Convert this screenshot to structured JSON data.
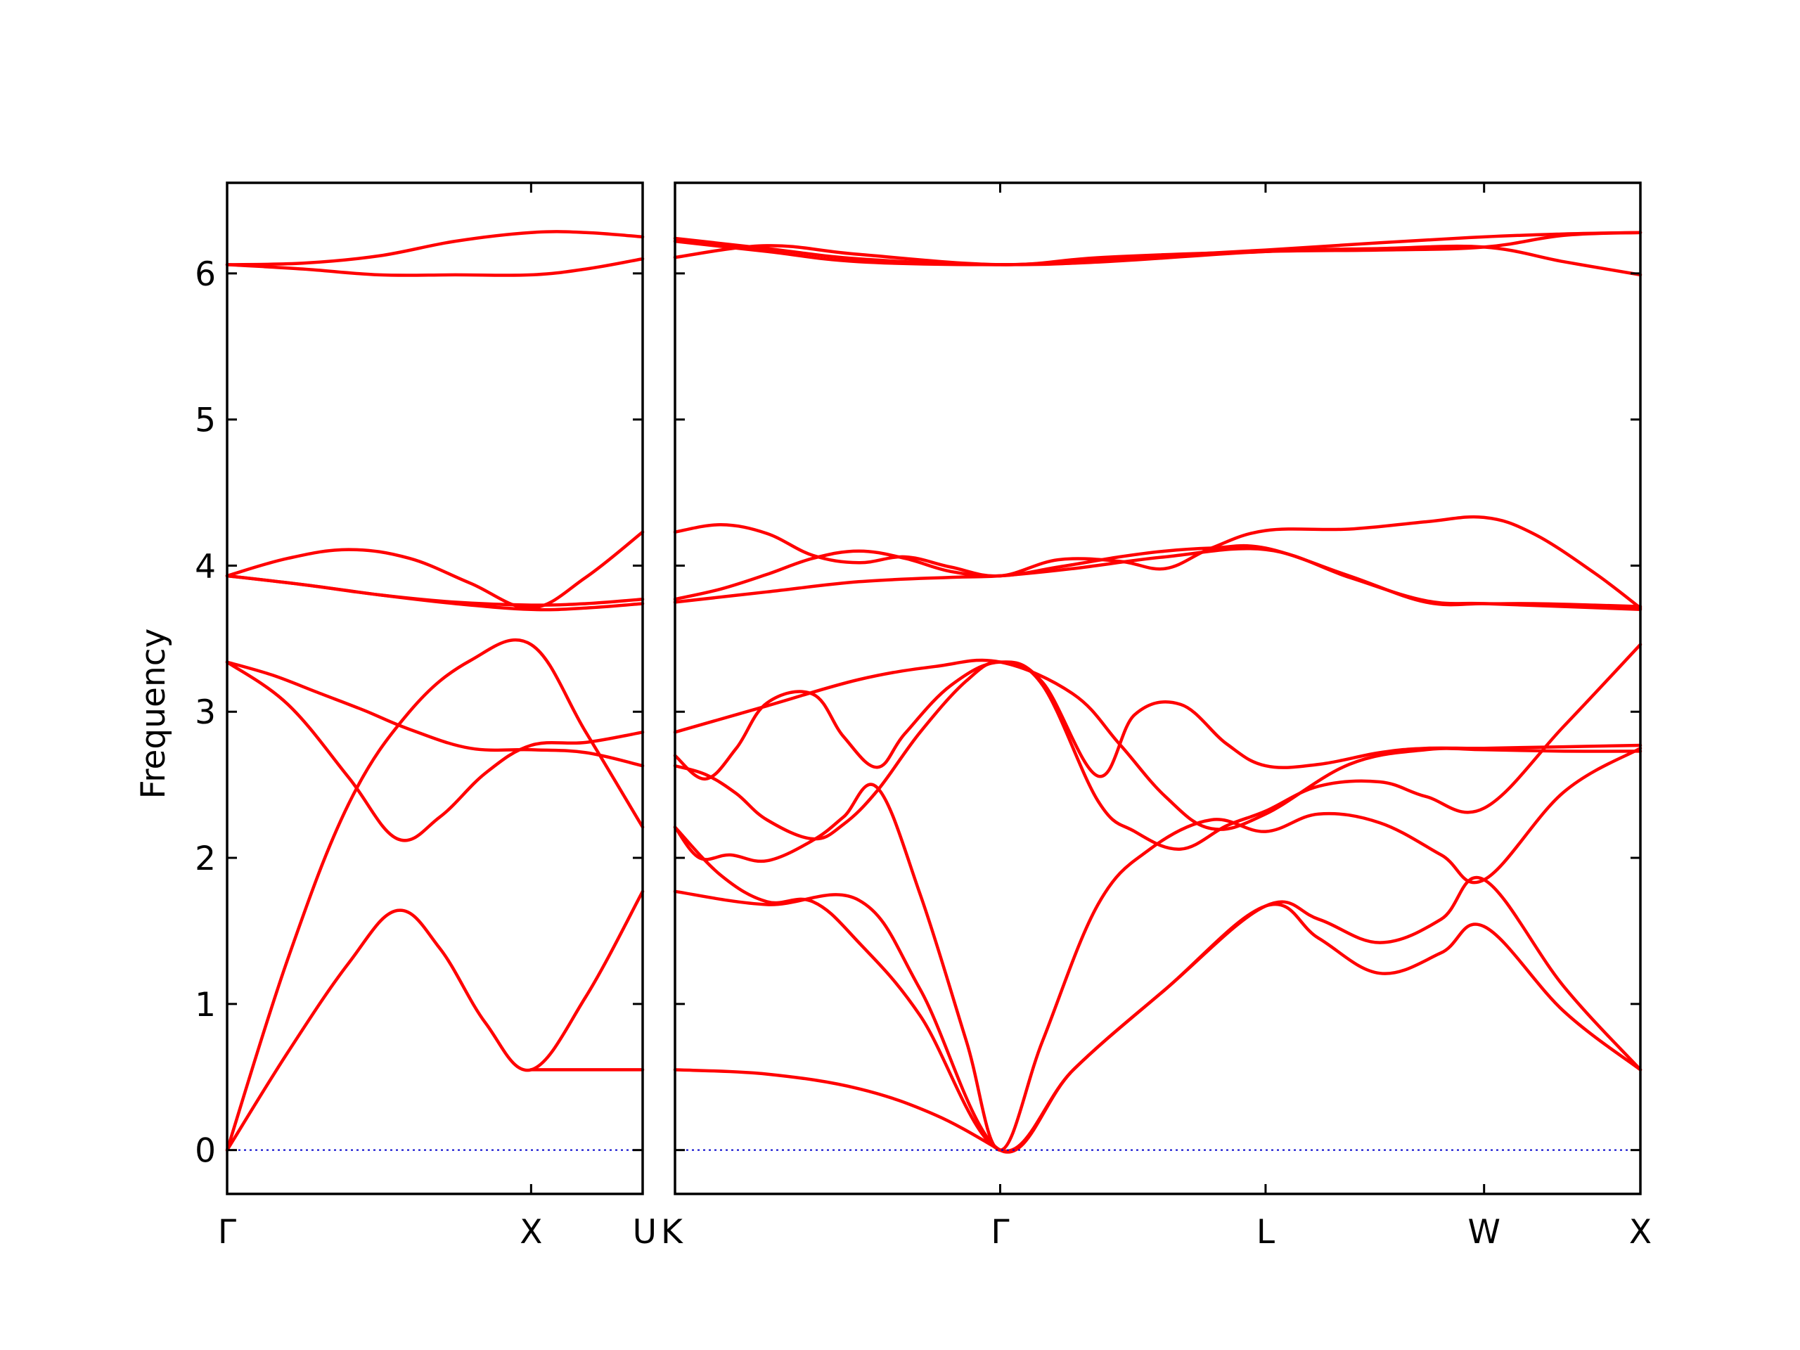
{
  "chart_data": {
    "type": "line",
    "title": "",
    "ylabel": "Frequency",
    "ylim": [
      -0.3,
      6.62
    ],
    "yticks": [
      0,
      1,
      2,
      3,
      4,
      5,
      6
    ],
    "grid": false,
    "colors": {
      "band": "#ff0000",
      "zero_line": "#0000cc",
      "axes": "#000000"
    },
    "panels": [
      {
        "name": "Gamma-X-U",
        "xlim": [
          0,
          1.367
        ],
        "xticks": [
          {
            "x": 0,
            "label": "Γ"
          },
          {
            "x": 1.0,
            "label": "X"
          },
          {
            "x": 1.367,
            "label": "U"
          }
        ],
        "series": [
          {
            "x": [
              0,
              0.25,
              0.5,
              0.75,
              1.0,
              1.18,
              1.367
            ],
            "y": [
              6.06,
              6.07,
              6.12,
              6.22,
              6.28,
              6.28,
              6.25
            ]
          },
          {
            "x": [
              0,
              0.25,
              0.5,
              0.75,
              1.0,
              1.18,
              1.367
            ],
            "y": [
              6.06,
              6.03,
              5.99,
              5.99,
              5.99,
              6.03,
              6.1
            ]
          },
          {
            "x": [
              0,
              0.2,
              0.4,
              0.6,
              0.8,
              1.0,
              1.18,
              1.367
            ],
            "y": [
              3.93,
              4.05,
              4.11,
              4.05,
              3.88,
              3.71,
              3.92,
              4.23
            ]
          },
          {
            "x": [
              0,
              0.25,
              0.5,
              0.75,
              1.0,
              1.18,
              1.367
            ],
            "y": [
              3.93,
              3.87,
              3.8,
              3.75,
              3.73,
              3.74,
              3.77
            ]
          },
          {
            "x": [
              0,
              0.25,
              0.5,
              0.75,
              1.0,
              1.18,
              1.367
            ],
            "y": [
              3.93,
              3.87,
              3.8,
              3.74,
              3.7,
              3.71,
              3.74
            ]
          },
          {
            "x": [
              0,
              0.15,
              0.3,
              0.45,
              0.6,
              0.8,
              1.0,
              1.18,
              1.367
            ],
            "y": [
              3.34,
              3.25,
              3.13,
              3.01,
              2.88,
              2.75,
              2.74,
              2.72,
              2.63
            ]
          },
          {
            "x": [
              0,
              0.2,
              0.4,
              0.56,
              0.7,
              0.85,
              1.0,
              1.18,
              1.367
            ],
            "y": [
              3.34,
              3.05,
              2.55,
              2.13,
              2.28,
              2.58,
              2.77,
              2.79,
              2.86
            ]
          },
          {
            "x": [
              0,
              0.2,
              0.4,
              0.6,
              0.8,
              1.0,
              1.18,
              1.367
            ],
            "y": [
              0.0,
              1.31,
              2.37,
              3.0,
              3.35,
              3.46,
              2.86,
              2.21
            ]
          },
          {
            "x": [
              0,
              0.2,
              0.4,
              0.56,
              0.7,
              0.85,
              1.0,
              1.18,
              1.367
            ],
            "y": [
              0.0,
              0.67,
              1.28,
              1.64,
              1.38,
              0.87,
              0.55,
              1.05,
              1.77
            ]
          },
          {
            "x": [
              1.0,
              1.18,
              1.367
            ],
            "y": [
              0.55,
              0.55,
              0.55
            ]
          },
          {
            "x": [
              0,
              1.367
            ],
            "y": [
              0,
              0
            ],
            "style": "zero"
          }
        ]
      },
      {
        "name": "K-Gamma-L-W-X",
        "xlim": [
          0,
          3.15
        ],
        "xticks": [
          {
            "x": 0,
            "label": "K"
          },
          {
            "x": 1.061,
            "label": "Γ"
          },
          {
            "x": 1.927,
            "label": "L"
          },
          {
            "x": 2.64,
            "label": "W"
          },
          {
            "x": 3.15,
            "label": "X"
          }
        ],
        "series": [
          {
            "x": [
              0,
              0.3,
              0.6,
              1.061,
              1.4,
              1.927,
              2.3,
              2.64,
              2.9,
              3.15
            ],
            "y": [
              6.24,
              6.17,
              6.1,
              6.06,
              6.1,
              6.16,
              6.21,
              6.25,
              6.27,
              6.28
            ]
          },
          {
            "x": [
              0,
              0.3,
              0.6,
              1.061,
              1.4,
              1.927,
              2.3,
              2.64,
              2.9,
              3.15
            ],
            "y": [
              6.22,
              6.15,
              6.08,
              6.06,
              6.08,
              6.15,
              6.17,
              6.18,
              6.08,
              5.99
            ]
          },
          {
            "x": [
              0,
              0.3,
              0.6,
              1.061,
              1.4,
              1.927,
              2.3,
              2.64,
              2.9,
              3.15
            ],
            "y": [
              6.11,
              6.19,
              6.13,
              6.06,
              6.11,
              6.15,
              6.16,
              6.18,
              6.26,
              6.28
            ]
          },
          {
            "x": [
              0,
              0.15,
              0.3,
              0.45,
              0.6,
              0.75,
              0.9,
              1.061,
              1.25,
              1.45,
              1.6,
              1.75,
              1.927,
              2.2,
              2.45,
              2.64,
              2.8,
              3.0,
              3.15
            ],
            "y": [
              4.23,
              4.28,
              4.22,
              4.07,
              4.02,
              4.06,
              3.99,
              3.93,
              4.04,
              4.03,
              3.98,
              4.12,
              4.24,
              4.25,
              4.3,
              4.33,
              4.22,
              3.95,
              3.71
            ]
          },
          {
            "x": [
              0,
              0.15,
              0.3,
              0.45,
              0.6,
              0.75,
              0.9,
              1.061,
              1.25,
              1.45,
              1.6,
              1.75,
              1.927,
              2.2,
              2.45,
              2.64,
              2.8,
              3.0,
              3.15
            ],
            "y": [
              3.77,
              3.84,
              3.94,
              4.05,
              4.1,
              4.05,
              3.96,
              3.93,
              3.99,
              4.06,
              4.1,
              4.12,
              4.12,
              3.93,
              3.75,
              3.74,
              3.74,
              3.73,
              3.72
            ]
          },
          {
            "x": [
              0,
              0.3,
              0.6,
              0.9,
              1.061,
              1.3,
              1.6,
              1.927,
              2.2,
              2.45,
              2.64,
              2.9,
              3.15
            ],
            "y": [
              3.75,
              3.82,
              3.89,
              3.92,
              3.93,
              3.98,
              4.06,
              4.11,
              3.92,
              3.76,
              3.74,
              3.72,
              3.7
            ]
          },
          {
            "x": [
              0,
              0.3,
              0.6,
              0.85,
              1.061,
              1.3,
              1.45,
              1.6,
              1.75,
              1.927,
              2.2,
              2.45,
              2.64,
              2.9,
              3.15
            ],
            "y": [
              2.86,
              3.04,
              3.22,
              3.31,
              3.34,
              3.12,
              2.78,
              2.42,
              2.2,
              2.3,
              2.64,
              2.74,
              2.74,
              2.73,
              2.73
            ]
          },
          {
            "x": [
              0,
              0.1,
              0.2,
              0.3,
              0.45,
              0.55,
              0.66,
              0.75,
              0.9,
              1.061,
              1.2,
              1.38,
              1.5,
              1.65,
              1.8,
              1.927,
              2.1,
              2.3,
              2.45,
              2.64,
              2.9,
              3.15
            ],
            "y": [
              2.7,
              2.54,
              2.75,
              3.06,
              3.12,
              2.83,
              2.62,
              2.85,
              3.18,
              3.34,
              3.2,
              2.56,
              2.98,
              3.05,
              2.78,
              2.63,
              2.64,
              2.72,
              2.75,
              2.75,
              2.76,
              2.77
            ]
          },
          {
            "x": [
              0,
              0.1,
              0.2,
              0.3,
              0.45,
              0.55,
              0.66,
              0.8,
              0.95,
              1.061,
              1.2,
              1.38,
              1.5,
              1.65,
              1.8,
              1.927,
              2.1,
              2.3,
              2.45,
              2.64,
              2.9,
              3.15
            ],
            "y": [
              2.63,
              2.57,
              2.44,
              2.26,
              2.13,
              2.23,
              2.46,
              2.86,
              3.21,
              3.34,
              3.18,
              2.39,
              2.18,
              2.06,
              2.22,
              2.32,
              2.49,
              2.52,
              2.42,
              2.34,
              2.9,
              3.46
            ]
          },
          {
            "x": [
              0,
              0.08,
              0.18,
              0.3,
              0.45,
              0.55,
              0.66,
              0.8,
              0.95,
              1.061,
              1.2,
              1.38,
              1.55,
              1.75,
              1.927,
              2.1,
              2.3,
              2.5,
              2.64,
              2.9,
              3.15
            ],
            "y": [
              2.21,
              2.0,
              2.02,
              1.98,
              2.12,
              2.28,
              2.48,
              1.75,
              0.75,
              0.0,
              0.75,
              1.68,
              2.06,
              2.26,
              2.18,
              2.3,
              2.24,
              2.02,
              1.85,
              2.45,
              2.75
            ]
          },
          {
            "x": [
              0,
              0.15,
              0.3,
              0.45,
              0.6,
              0.8,
              1.061,
              1.3,
              1.6,
              1.927,
              2.1,
              2.3,
              2.5,
              2.64,
              2.9,
              3.15
            ],
            "y": [
              2.21,
              1.88,
              1.7,
              1.7,
              1.42,
              0.92,
              0.0,
              0.55,
              1.1,
              1.67,
              1.58,
              1.42,
              1.58,
              1.85,
              1.12,
              0.55
            ]
          },
          {
            "x": [
              0,
              0.3,
              0.6,
              0.8,
              1.061,
              1.3,
              1.6,
              1.927,
              2.1,
              2.3,
              2.5,
              2.64,
              2.9,
              3.15
            ],
            "y": [
              1.77,
              1.68,
              1.71,
              1.1,
              0.0,
              0.55,
              1.1,
              1.67,
              1.45,
              1.21,
              1.35,
              1.53,
              0.95,
              0.55
            ]
          },
          {
            "x": [
              0,
              0.3,
              0.6,
              0.85,
              1.061
            ],
            "y": [
              0.55,
              0.52,
              0.42,
              0.24,
              0.0
            ]
          },
          {
            "x": [
              0,
              3.15
            ],
            "y": [
              0,
              0
            ],
            "style": "zero"
          }
        ]
      }
    ]
  }
}
